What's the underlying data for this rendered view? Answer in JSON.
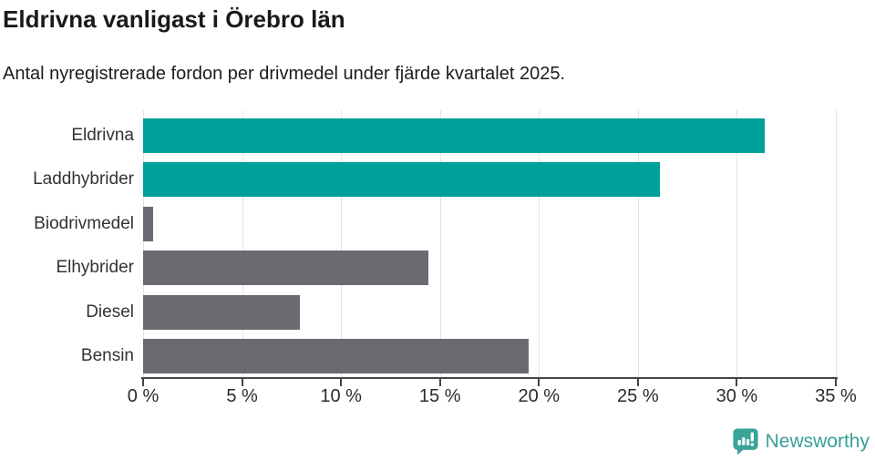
{
  "header": {
    "title": "Eldrivna vanligast i Örebro län",
    "subtitle": "Antal nyregistrerade fordon per drivmedel under fjärde kvartalet 2025."
  },
  "chart_data": {
    "type": "bar",
    "orientation": "horizontal",
    "title": "Eldrivna vanligast i Örebro län",
    "subtitle": "Antal nyregistrerade fordon per drivmedel under fjärde kvartalet 2025.",
    "categories": [
      "Eldrivna",
      "Laddhybrider",
      "Biodrivmedel",
      "Elhybrider",
      "Diesel",
      "Bensin"
    ],
    "values": [
      31.4,
      26.1,
      0.5,
      14.4,
      7.9,
      19.5
    ],
    "bar_colors": [
      "#00a09a",
      "#00a09a",
      "#6c6a70",
      "#6c6a70",
      "#6c6a70",
      "#6c6a70"
    ],
    "xlabel": "",
    "ylabel": "",
    "xlim": [
      0,
      35
    ],
    "x_ticks": [
      0,
      5,
      10,
      15,
      20,
      25,
      30,
      35
    ],
    "x_tick_labels": [
      "0 %",
      "5 %",
      "10 %",
      "15 %",
      "20 %",
      "25 %",
      "30 %",
      "35 %"
    ],
    "grid": "vertical-light",
    "legend": "none",
    "unit": "%"
  },
  "colors": {
    "accent_teal": "#00a09a",
    "neutral_gray": "#6c6a70",
    "gridline": "#e3e3e3",
    "axis": "#454545",
    "logo_teal": "#389e97"
  },
  "footer": {
    "logo_text": "Newsworthy",
    "logo_icon": "bar-chart-speech-bubble-icon"
  }
}
